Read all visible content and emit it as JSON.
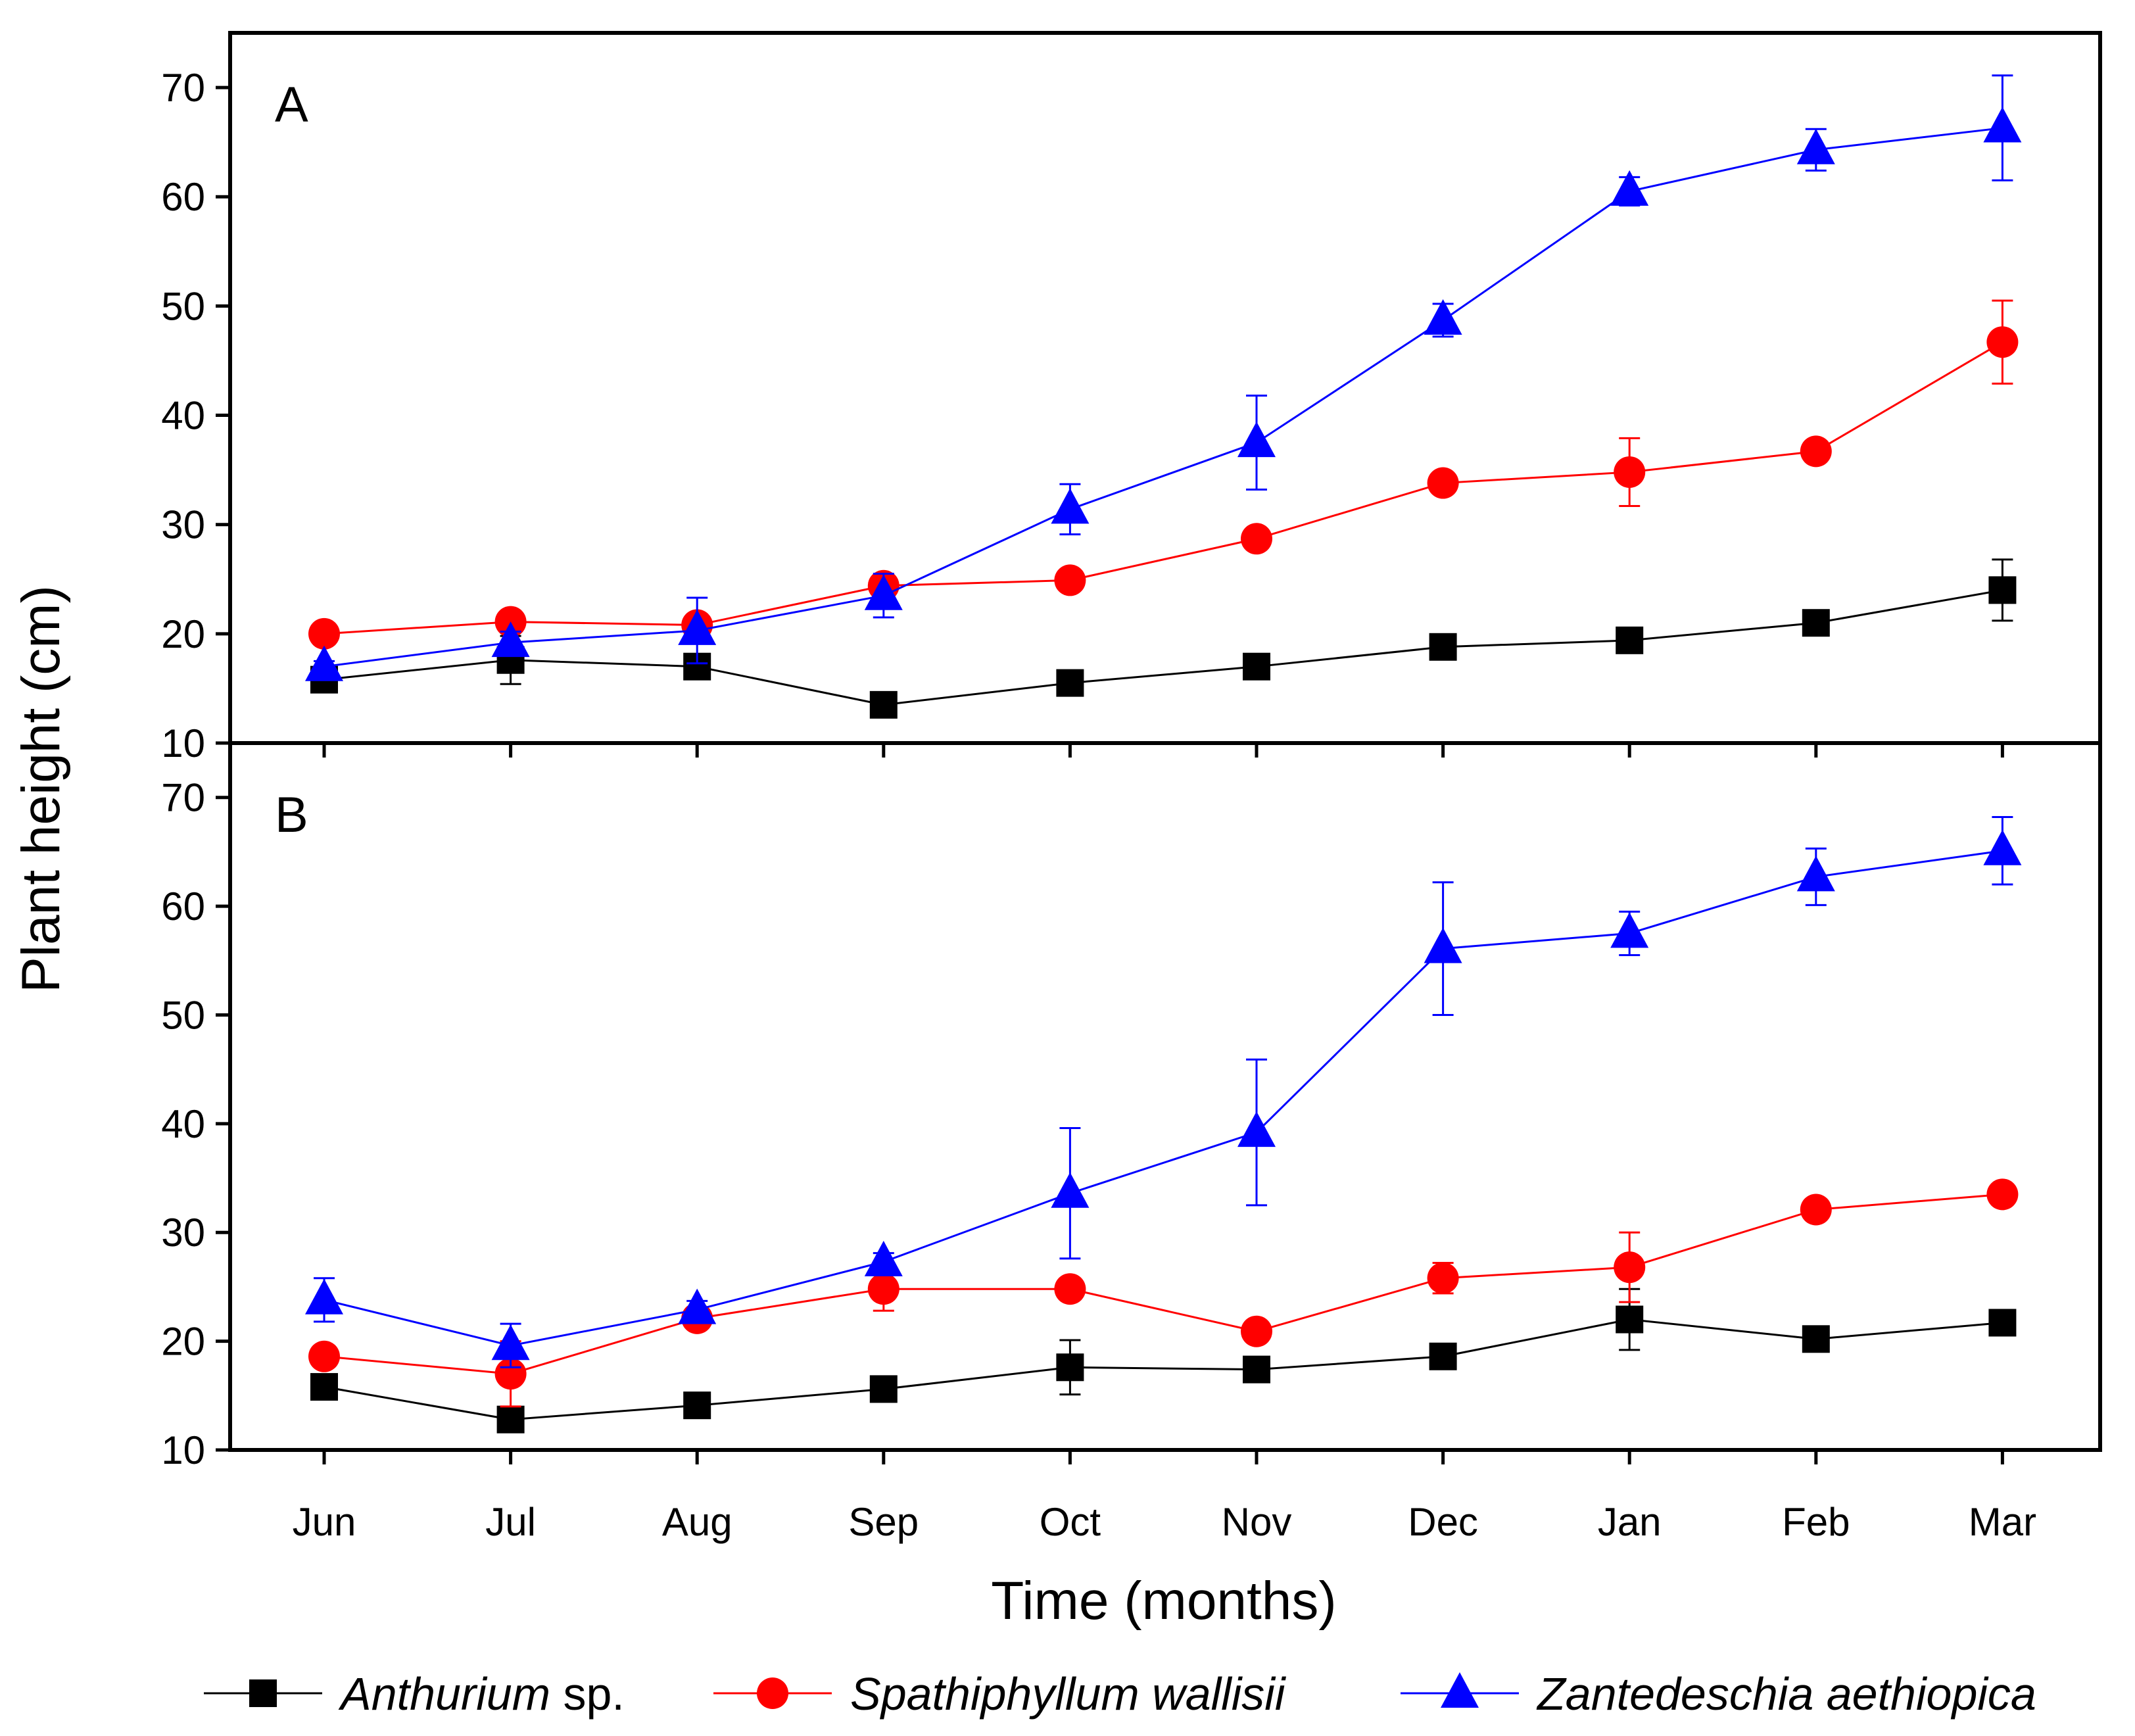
{
  "chart_data": {
    "type": "line",
    "xlabel": "Time (months)",
    "ylabel": "Plant height (cm)",
    "categories": [
      "Jun",
      "Jul",
      "Aug",
      "Sep",
      "Oct",
      "Nov",
      "Dec",
      "Jan",
      "Feb",
      "Mar"
    ],
    "ylim": [
      10,
      75
    ],
    "yticks": [
      10,
      20,
      30,
      40,
      50,
      60,
      70
    ],
    "legend": {
      "placement": "bottom",
      "items": [
        {
          "italic": "Anthurium",
          "plain": " sp."
        },
        {
          "italic": "Spathiphyllum wallisii",
          "plain": ""
        },
        {
          "italic": "Zantedeschia aethiopica",
          "plain": ""
        }
      ]
    },
    "series_colors": [
      "#000000",
      "#ff0000",
      "#0000ff"
    ],
    "series_markers": [
      "square",
      "circle",
      "triangle"
    ],
    "panels": [
      {
        "label": "A",
        "series": [
          {
            "name": "Anthurium sp.",
            "values": [
              15.8,
              17.6,
              17.0,
              13.5,
              15.5,
              17.0,
              18.8,
              19.4,
              21.0,
              24.0
            ],
            "errors": [
              0.5,
              2.2,
              0.8,
              0.5,
              0.6,
              0.6,
              0.8,
              0.8,
              0.6,
              2.8
            ]
          },
          {
            "name": "Spathiphyllum wallisii",
            "values": [
              20.0,
              21.1,
              20.8,
              24.4,
              24.9,
              28.7,
              33.8,
              34.8,
              36.7,
              46.7
            ],
            "errors": [
              0.8,
              1.0,
              1.0,
              0.8,
              0.6,
              0.6,
              0.6,
              3.1,
              0.6,
              3.8
            ]
          },
          {
            "name": "Zantedeschia aethiopica",
            "values": [
              17.0,
              19.2,
              20.3,
              23.5,
              31.4,
              37.5,
              48.7,
              60.5,
              64.3,
              66.3
            ],
            "errors": [
              0.5,
              1.0,
              3.0,
              2.0,
              2.3,
              4.3,
              1.5,
              1.3,
              1.9,
              4.8
            ]
          }
        ]
      },
      {
        "label": "B",
        "series": [
          {
            "name": "Anthurium sp.",
            "values": [
              15.8,
              12.8,
              14.1,
              15.6,
              17.6,
              17.4,
              18.6,
              22.0,
              20.2,
              21.7
            ],
            "errors": [
              0.5,
              0.6,
              0.5,
              0.5,
              2.5,
              0.6,
              0.6,
              2.8,
              0.6,
              0.6
            ]
          },
          {
            "name": "Spathiphyllum wallisii",
            "values": [
              18.6,
              17.0,
              22.1,
              24.8,
              24.8,
              20.9,
              25.8,
              26.8,
              32.1,
              33.5
            ],
            "errors": [
              0.6,
              3.0,
              0.8,
              2.0,
              0.6,
              0.8,
              1.4,
              3.2,
              0.6,
              0.6
            ]
          },
          {
            "name": "Zantedeschia aethiopica",
            "values": [
              23.8,
              19.6,
              22.9,
              27.3,
              33.6,
              39.2,
              56.1,
              57.5,
              62.7,
              65.1
            ],
            "errors": [
              2.0,
              2.0,
              0.8,
              0.8,
              6.0,
              6.7,
              6.1,
              2.0,
              2.6,
              3.1
            ]
          }
        ]
      }
    ]
  }
}
